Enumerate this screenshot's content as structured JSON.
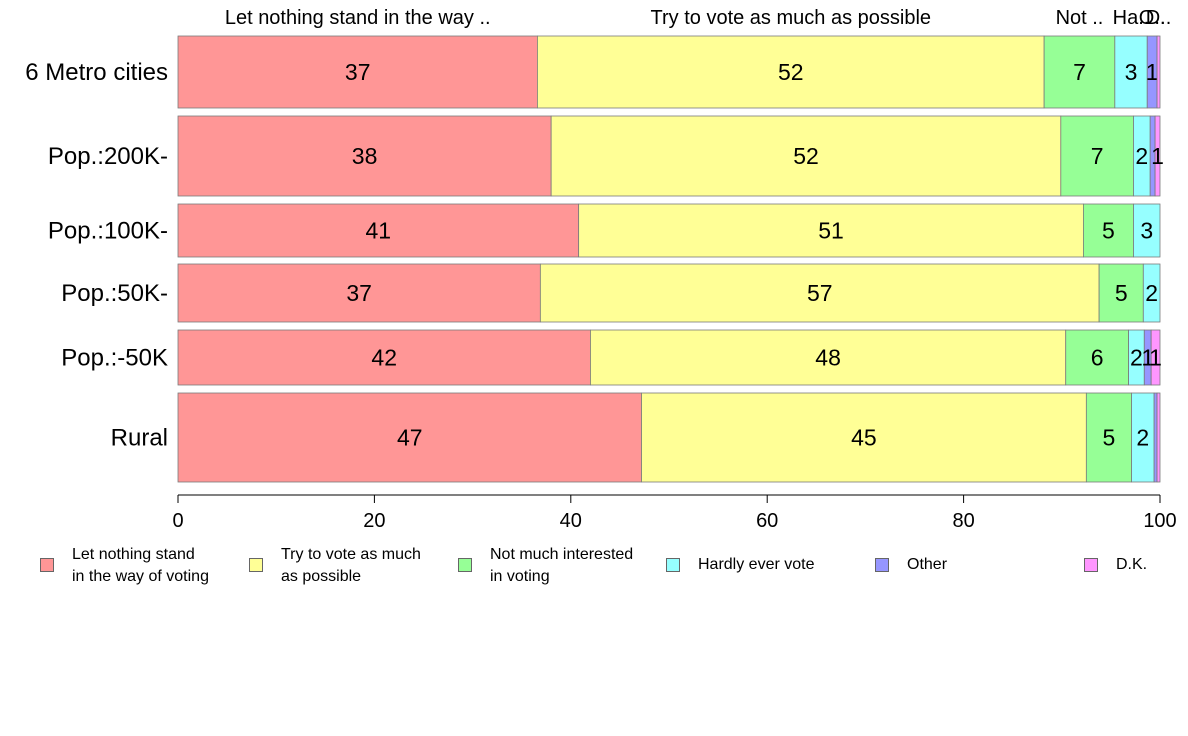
{
  "chart_data": {
    "type": "bar",
    "orientation": "horizontal",
    "stacked": true,
    "categories": [
      "6 Metro cities",
      "Pop.:200K-",
      "Pop.:100K-",
      "Pop.:50K-",
      "Pop.:-50K",
      "Rural"
    ],
    "series": [
      {
        "name": "Let nothing stand\nin the way of voting",
        "top_label": "Let nothing stand in the way ..",
        "color": "#ff9696",
        "values": [
          36.6,
          38.0,
          40.8,
          36.9,
          42.0,
          47.2
        ]
      },
      {
        "name": "Try to vote as much\nas possible",
        "top_label": "Try to vote as much as possible",
        "color": "#ffff96",
        "values": [
          51.6,
          51.9,
          51.4,
          56.9,
          48.4,
          45.3
        ]
      },
      {
        "name": "Not much interested\nin voting",
        "top_label": "Not ..",
        "color": "#96ff96",
        "values": [
          7.2,
          7.4,
          5.1,
          4.5,
          6.4,
          4.6
        ]
      },
      {
        "name": "Hardly ever vote",
        "top_label": "Ha..",
        "color": "#96ffff",
        "values": [
          3.3,
          1.7,
          2.7,
          1.7,
          1.6,
          2.3
        ]
      },
      {
        "name": "Other",
        "top_label": "O..",
        "color": "#9696ff",
        "values": [
          1.0,
          0.5,
          0.0,
          0.0,
          0.7,
          0.3
        ]
      },
      {
        "name": "D.K.",
        "top_label": "D..",
        "color": "#ff96ff",
        "values": [
          0.3,
          0.5,
          0.0,
          0.0,
          0.9,
          0.3
        ]
      }
    ],
    "data_labels": [
      [
        "37",
        "52",
        "7",
        "3",
        "1",
        ""
      ],
      [
        "38",
        "52",
        "7",
        "2",
        "",
        "1"
      ],
      [
        "41",
        "51",
        "5",
        "3",
        "",
        ""
      ],
      [
        "37",
        "57",
        "5",
        "2",
        "",
        ""
      ],
      [
        "42",
        "48",
        "6",
        "2",
        "1",
        "1"
      ],
      [
        "47",
        "45",
        "5",
        "2",
        "",
        ""
      ]
    ],
    "xlim": [
      0,
      100
    ],
    "xticks": [
      "0",
      "20",
      "40",
      "60",
      "80",
      "100"
    ],
    "legend_placement": "bottom",
    "grid": false
  }
}
